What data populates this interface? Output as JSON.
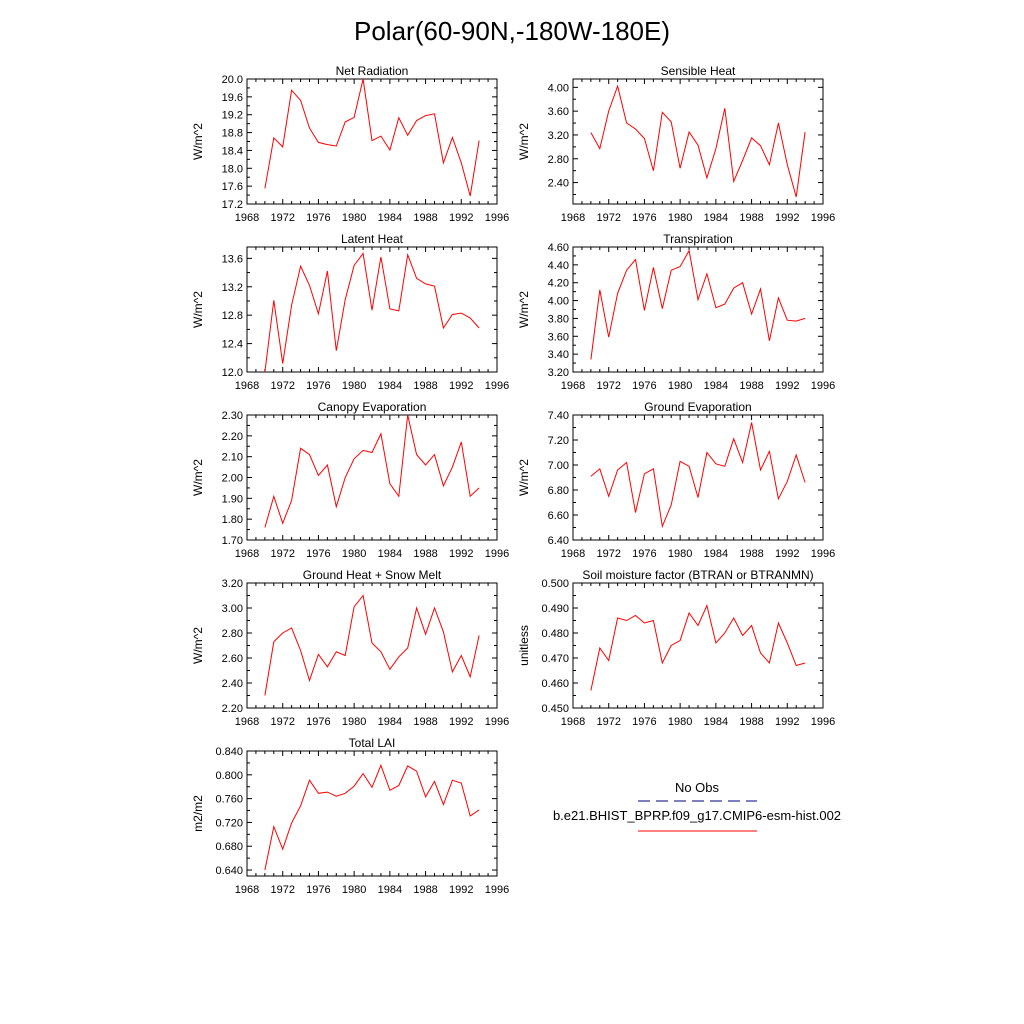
{
  "title": "Polar(60-90N,-180W-180E)",
  "colors": {
    "model": "#ff0000",
    "obs": "#000080",
    "axis": "#000000"
  },
  "legend": {
    "obs_label": "No Obs",
    "model_label": "b.e21.BHIST_BPRP.f09_g17.CMIP6-esm-hist.002"
  },
  "chart_data": [
    {
      "type": "line",
      "title": "Net Radiation",
      "ylabel": "W/m^2",
      "xlim": [
        1968,
        1996
      ],
      "xticks": [
        "1968",
        "1972",
        "1976",
        "1980",
        "1984",
        "1988",
        "1992",
        "1996"
      ],
      "ylim": [
        17.2,
        20.0
      ],
      "yticks": [
        "17.2",
        "17.6",
        "18.0",
        "18.4",
        "18.8",
        "19.2",
        "19.6",
        "20.0"
      ],
      "x": [
        1970,
        1971,
        1972,
        1973,
        1974,
        1975,
        1976,
        1977,
        1978,
        1979,
        1980,
        1981,
        1982,
        1983,
        1984,
        1985,
        1986,
        1987,
        1988,
        1989,
        1990,
        1991,
        1992,
        1993,
        1994
      ],
      "values": [
        17.55,
        18.68,
        18.48,
        19.75,
        19.52,
        18.9,
        18.58,
        18.53,
        18.5,
        19.04,
        19.14,
        20.0,
        18.62,
        18.72,
        18.41,
        19.13,
        18.74,
        19.07,
        19.18,
        19.22,
        18.12,
        18.69,
        18.12,
        17.38,
        18.62
      ]
    },
    {
      "type": "line",
      "title": "Sensible Heat",
      "ylabel": "W/m^2",
      "xlim": [
        1968,
        1996
      ],
      "xticks": [
        "1968",
        "1972",
        "1976",
        "1980",
        "1984",
        "1988",
        "1992",
        "1996"
      ],
      "ylim": [
        2.04,
        4.14
      ],
      "yticks": [
        "2.40",
        "2.80",
        "3.20",
        "3.60",
        "4.00"
      ],
      "x": [
        1970,
        1971,
        1972,
        1973,
        1974,
        1975,
        1976,
        1977,
        1978,
        1979,
        1980,
        1981,
        1982,
        1983,
        1984,
        1985,
        1986,
        1987,
        1988,
        1989,
        1990,
        1991,
        1992,
        1993,
        1994
      ],
      "values": [
        3.24,
        2.97,
        3.6,
        4.02,
        3.4,
        3.3,
        3.14,
        2.6,
        3.58,
        3.42,
        2.64,
        3.25,
        3.03,
        2.48,
        2.97,
        3.65,
        2.42,
        2.77,
        3.15,
        3.02,
        2.7,
        3.4,
        2.7,
        2.16,
        3.25
      ]
    },
    {
      "type": "line",
      "title": "Latent Heat",
      "ylabel": "W/m^2",
      "xlim": [
        1968,
        1996
      ],
      "xticks": [
        "1968",
        "1972",
        "1976",
        "1980",
        "1984",
        "1988",
        "1992",
        "1996"
      ],
      "ylim": [
        12.0,
        13.76
      ],
      "yticks": [
        "12.0",
        "12.4",
        "12.8",
        "13.2",
        "13.6"
      ],
      "x": [
        1970,
        1971,
        1972,
        1973,
        1974,
        1975,
        1976,
        1977,
        1978,
        1979,
        1980,
        1981,
        1982,
        1983,
        1984,
        1985,
        1986,
        1987,
        1988,
        1989,
        1990,
        1991,
        1992,
        1993,
        1994
      ],
      "values": [
        12.0,
        13.01,
        12.12,
        12.94,
        13.49,
        13.22,
        12.82,
        13.42,
        12.3,
        13.02,
        13.5,
        13.67,
        12.87,
        13.62,
        12.89,
        12.86,
        13.65,
        13.32,
        13.24,
        13.21,
        12.62,
        12.81,
        12.83,
        12.76,
        12.62
      ]
    },
    {
      "type": "line",
      "title": "Transpiration",
      "ylabel": "W/m^2",
      "xlim": [
        1968,
        1996
      ],
      "xticks": [
        "1968",
        "1972",
        "1976",
        "1980",
        "1984",
        "1988",
        "1992",
        "1996"
      ],
      "ylim": [
        3.2,
        4.6
      ],
      "yticks": [
        "3.20",
        "3.40",
        "3.60",
        "3.80",
        "4.00",
        "4.20",
        "4.40",
        "4.60"
      ],
      "x": [
        1970,
        1971,
        1972,
        1973,
        1974,
        1975,
        1976,
        1977,
        1978,
        1979,
        1980,
        1981,
        1982,
        1983,
        1984,
        1985,
        1986,
        1987,
        1988,
        1989,
        1990,
        1991,
        1992,
        1993,
        1994
      ],
      "values": [
        3.34,
        4.12,
        3.59,
        4.08,
        4.34,
        4.46,
        3.89,
        4.37,
        3.91,
        4.34,
        4.38,
        4.56,
        4.01,
        4.3,
        3.92,
        3.96,
        4.14,
        4.2,
        3.85,
        4.13,
        3.55,
        4.03,
        3.78,
        3.77,
        3.8
      ]
    },
    {
      "type": "line",
      "title": "Canopy Evaporation",
      "ylabel": "W/m^2",
      "xlim": [
        1968,
        1996
      ],
      "xticks": [
        "1968",
        "1972",
        "1976",
        "1980",
        "1984",
        "1988",
        "1992",
        "1996"
      ],
      "ylim": [
        1.7,
        2.3
      ],
      "yticks": [
        "1.70",
        "1.80",
        "1.90",
        "2.00",
        "2.10",
        "2.20",
        "2.30"
      ],
      "x": [
        1970,
        1971,
        1972,
        1973,
        1974,
        1975,
        1976,
        1977,
        1978,
        1979,
        1980,
        1981,
        1982,
        1983,
        1984,
        1985,
        1986,
        1987,
        1988,
        1989,
        1990,
        1991,
        1992,
        1993,
        1994
      ],
      "values": [
        1.76,
        1.91,
        1.78,
        1.89,
        2.14,
        2.11,
        2.01,
        2.06,
        1.86,
        2.0,
        2.09,
        2.13,
        2.12,
        2.21,
        1.97,
        1.91,
        2.3,
        2.11,
        2.06,
        2.11,
        1.96,
        2.05,
        2.17,
        1.91,
        1.95
      ]
    },
    {
      "type": "line",
      "title": "Ground Evaporation",
      "ylabel": "W/m^2",
      "xlim": [
        1968,
        1996
      ],
      "xticks": [
        "1968",
        "1972",
        "1976",
        "1980",
        "1984",
        "1988",
        "1992",
        "1996"
      ],
      "ylim": [
        6.4,
        7.4
      ],
      "yticks": [
        "6.40",
        "6.60",
        "6.80",
        "7.00",
        "7.20",
        "7.40"
      ],
      "x": [
        1970,
        1971,
        1972,
        1973,
        1974,
        1975,
        1976,
        1977,
        1978,
        1979,
        1980,
        1981,
        1982,
        1983,
        1984,
        1985,
        1986,
        1987,
        1988,
        1989,
        1990,
        1991,
        1992,
        1993,
        1994
      ],
      "values": [
        6.91,
        6.97,
        6.75,
        6.96,
        7.02,
        6.62,
        6.93,
        6.97,
        6.51,
        6.68,
        7.03,
        6.99,
        6.74,
        7.1,
        7.01,
        6.99,
        7.21,
        7.02,
        7.34,
        6.96,
        7.11,
        6.73,
        6.87,
        7.08,
        6.86
      ]
    },
    {
      "type": "line",
      "title": "Ground Heat + Snow Melt",
      "ylabel": "W/m^2",
      "xlim": [
        1968,
        1996
      ],
      "xticks": [
        "1968",
        "1972",
        "1976",
        "1980",
        "1984",
        "1988",
        "1992",
        "1996"
      ],
      "ylim": [
        2.2,
        3.2
      ],
      "yticks": [
        "2.20",
        "2.40",
        "2.60",
        "2.80",
        "3.00",
        "3.20"
      ],
      "x": [
        1970,
        1971,
        1972,
        1973,
        1974,
        1975,
        1976,
        1977,
        1978,
        1979,
        1980,
        1981,
        1982,
        1983,
        1984,
        1985,
        1986,
        1987,
        1988,
        1989,
        1990,
        1991,
        1992,
        1993,
        1994
      ],
      "values": [
        2.3,
        2.73,
        2.8,
        2.84,
        2.66,
        2.42,
        2.63,
        2.53,
        2.65,
        2.62,
        3.01,
        3.1,
        2.72,
        2.65,
        2.51,
        2.61,
        2.68,
        3.0,
        2.79,
        3.0,
        2.81,
        2.49,
        2.62,
        2.45,
        2.78
      ]
    },
    {
      "type": "line",
      "title": "Soil moisture factor (BTRAN or BTRANMN)",
      "ylabel": "unitless",
      "xlim": [
        1968,
        1996
      ],
      "xticks": [
        "1968",
        "1972",
        "1976",
        "1980",
        "1984",
        "1988",
        "1992",
        "1996"
      ],
      "ylim": [
        0.45,
        0.5
      ],
      "yticks": [
        "0.450",
        "0.460",
        "0.470",
        "0.480",
        "0.490",
        "0.500"
      ],
      "x": [
        1970,
        1971,
        1972,
        1973,
        1974,
        1975,
        1976,
        1977,
        1978,
        1979,
        1980,
        1981,
        1982,
        1983,
        1984,
        1985,
        1986,
        1987,
        1988,
        1989,
        1990,
        1991,
        1992,
        1993,
        1994
      ],
      "values": [
        0.457,
        0.474,
        0.469,
        0.486,
        0.485,
        0.487,
        0.484,
        0.485,
        0.468,
        0.475,
        0.477,
        0.488,
        0.483,
        0.491,
        0.476,
        0.48,
        0.486,
        0.479,
        0.483,
        0.472,
        0.468,
        0.484,
        0.476,
        0.467,
        0.468
      ]
    },
    {
      "type": "line",
      "title": "Total LAI",
      "ylabel": "m2/m2",
      "xlim": [
        1968,
        1996
      ],
      "xticks": [
        "1968",
        "1972",
        "1976",
        "1980",
        "1984",
        "1988",
        "1992",
        "1996"
      ],
      "ylim": [
        0.63,
        0.84
      ],
      "yticks": [
        "0.640",
        "0.680",
        "0.720",
        "0.760",
        "0.800",
        "0.840"
      ],
      "x": [
        1970,
        1971,
        1972,
        1973,
        1974,
        1975,
        1976,
        1977,
        1978,
        1979,
        1980,
        1981,
        1982,
        1983,
        1984,
        1985,
        1986,
        1987,
        1988,
        1989,
        1990,
        1991,
        1992,
        1993,
        1994
      ],
      "values": [
        0.64,
        0.713,
        0.675,
        0.719,
        0.748,
        0.791,
        0.769,
        0.771,
        0.764,
        0.769,
        0.781,
        0.802,
        0.779,
        0.816,
        0.774,
        0.782,
        0.815,
        0.806,
        0.763,
        0.789,
        0.75,
        0.791,
        0.786,
        0.731,
        0.741
      ]
    }
  ]
}
